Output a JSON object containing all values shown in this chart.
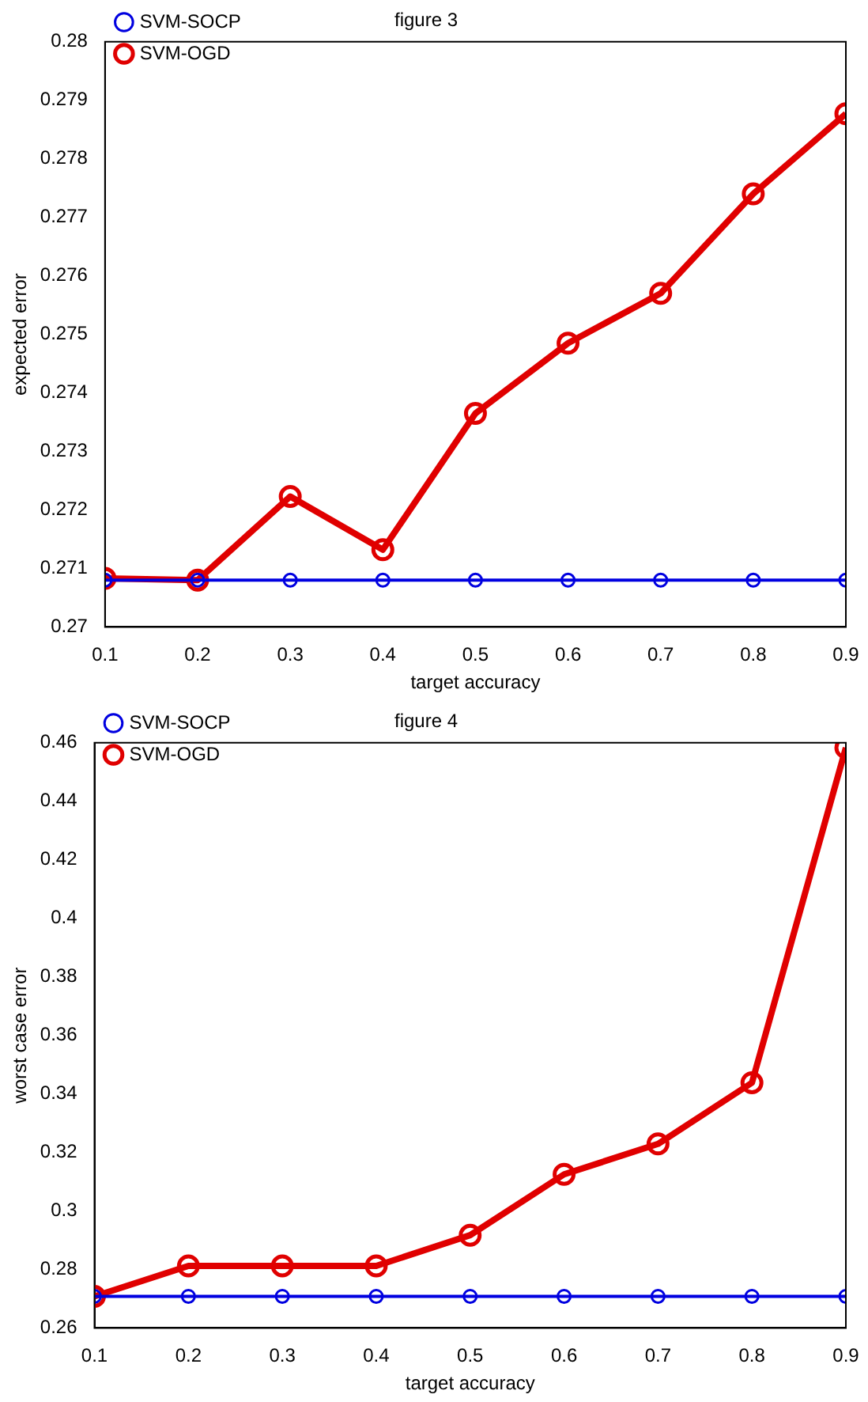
{
  "chart_data": [
    {
      "type": "line",
      "title": "figure 3",
      "xlabel": "target accuracy",
      "ylabel": "expected error",
      "x": [
        0.1,
        0.2,
        0.3,
        0.4,
        0.5,
        0.6,
        0.7,
        0.8,
        0.9
      ],
      "series": [
        {
          "name": "SVM-OGD",
          "color": "#e00000",
          "values": [
            0.27083,
            0.2708,
            0.27223,
            0.27132,
            0.27365,
            0.27485,
            0.2757,
            0.2774,
            0.27877
          ]
        },
        {
          "name": "SVM-SOCP",
          "color": "#0000e0",
          "values": [
            0.2708,
            0.2708,
            0.2708,
            0.2708,
            0.2708,
            0.2708,
            0.2708,
            0.2708,
            0.2708
          ]
        }
      ],
      "xlim": [
        0.1,
        0.9
      ],
      "xticks": [
        0.1,
        0.2,
        0.3,
        0.4,
        0.5,
        0.6,
        0.7,
        0.8,
        0.9
      ],
      "ylim": [
        0.27,
        0.28
      ],
      "yticks": [
        0.27,
        0.271,
        0.272,
        0.273,
        0.274,
        0.275,
        0.276,
        0.277,
        0.278,
        0.279,
        0.28
      ],
      "grid": false,
      "legend": "top left",
      "marker": "circle",
      "line_style": "solid"
    },
    {
      "type": "line",
      "title": "figure 4",
      "xlabel": "target accuracy",
      "ylabel": "worst case error",
      "x": [
        0.1,
        0.2,
        0.3,
        0.4,
        0.5,
        0.6,
        0.7,
        0.8,
        0.9
      ],
      "series": [
        {
          "name": "SVM-OGD",
          "color": "#e00000",
          "values": [
            0.2708,
            0.2812,
            0.2812,
            0.2812,
            0.2917,
            0.3125,
            0.3229,
            0.3438,
            0.4583
          ]
        },
        {
          "name": "SVM-SOCP",
          "color": "#0000e0",
          "values": [
            0.2708,
            0.2708,
            0.2708,
            0.2708,
            0.2708,
            0.2708,
            0.2708,
            0.2708,
            0.2708
          ]
        }
      ],
      "xlim": [
        0.1,
        0.9
      ],
      "xticks": [
        0.1,
        0.2,
        0.3,
        0.4,
        0.5,
        0.6,
        0.7,
        0.8,
        0.9
      ],
      "ylim": [
        0.26,
        0.46
      ],
      "yticks": [
        0.26,
        0.28,
        0.3,
        0.32,
        0.34,
        0.36,
        0.38,
        0.4,
        0.42,
        0.44,
        0.46
      ],
      "grid": false,
      "legend": "top left",
      "marker": "circle",
      "line_style": "solid"
    }
  ]
}
